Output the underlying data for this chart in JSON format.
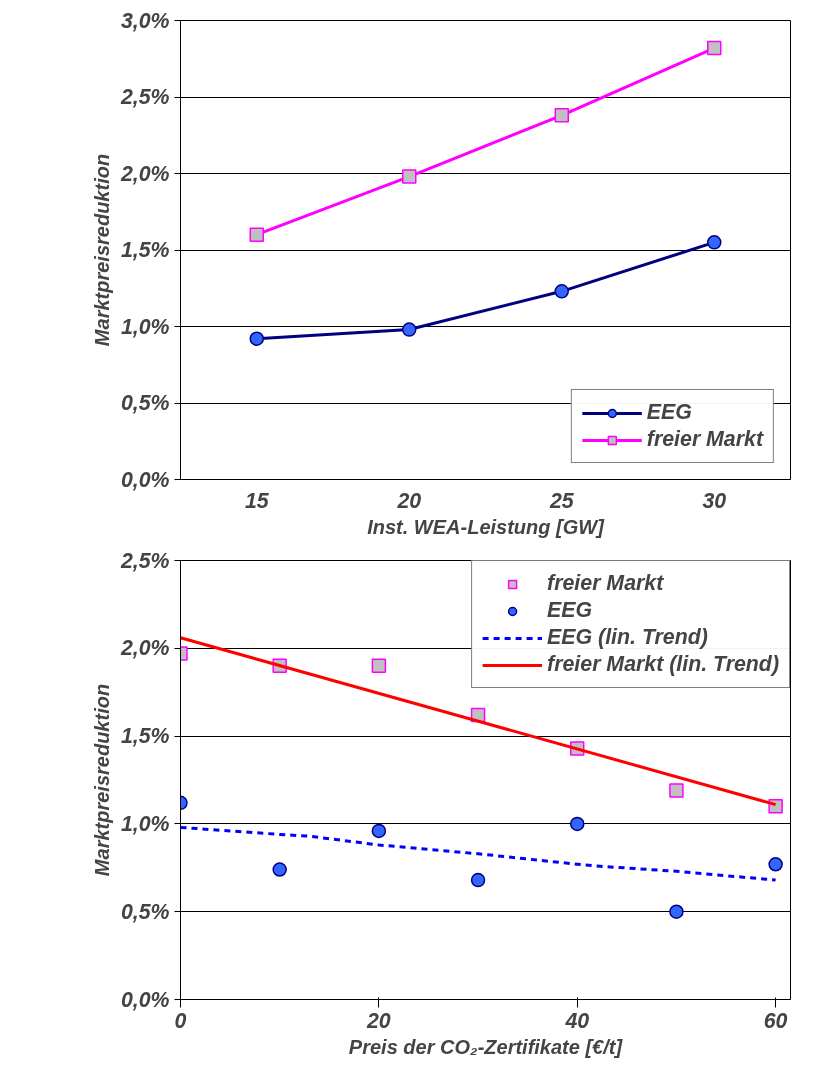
{
  "chart_data": [
    {
      "type": "line",
      "ylabel": "Marktpreisreduktion",
      "xlabel": "Inst. WEA-Leistung [GW]",
      "categories": [
        "15",
        "20",
        "25",
        "30"
      ],
      "series": [
        {
          "name": "EEG",
          "color": "#000080",
          "marker": "circle",
          "values": [
            0.92,
            0.98,
            1.23,
            1.55
          ]
        },
        {
          "name": "freier Markt",
          "color": "#ff00ff",
          "marker": "square",
          "values": [
            1.6,
            1.98,
            2.38,
            2.82
          ]
        }
      ],
      "ylim": [
        0,
        3.0
      ],
      "yticks": [
        {
          "value": 0,
          "label": "0,0%"
        },
        {
          "value": 0.5,
          "label": "0,5%"
        },
        {
          "value": 1.0,
          "label": "1,0%"
        },
        {
          "value": 1.5,
          "label": "1,5%"
        },
        {
          "value": 2.0,
          "label": "2,0%"
        },
        {
          "value": 2.5,
          "label": "2,5%"
        },
        {
          "value": 3.0,
          "label": "3,0%"
        }
      ],
      "grid": "y",
      "legend": "bottom right"
    },
    {
      "type": "scatter",
      "ylabel": "Marktpreisreduktion",
      "xlabel": "Preis der CO₂-Zertifikate [€/t]",
      "x": [
        0,
        10,
        20,
        30,
        40,
        50,
        60
      ],
      "series": [
        {
          "name": "freier Markt",
          "color": "#ff00ff",
          "marker": "square",
          "values": [
            1.97,
            1.9,
            1.9,
            1.62,
            1.43,
            1.19,
            1.1
          ]
        },
        {
          "name": "EEG",
          "color": "#3366ff",
          "marker": "circle",
          "values": [
            1.12,
            0.74,
            0.96,
            0.68,
            1.0,
            0.5,
            0.77
          ]
        },
        {
          "name": "EEG (lin. Trend)",
          "type": "line",
          "color": "#0000ff",
          "line_style": "dashed",
          "marker": "none",
          "x": [
            0,
            10,
            13,
            20,
            30,
            40,
            42,
            50,
            60
          ],
          "values": [
            0.98,
            0.94,
            0.93,
            0.88,
            0.83,
            0.77,
            0.76,
            0.73,
            0.68
          ]
        },
        {
          "name": "freier Markt (lin. Trend)",
          "type": "line",
          "color": "#ff0000",
          "line_style": "solid",
          "marker": "none",
          "x": [
            0,
            60
          ],
          "values": [
            2.06,
            1.11
          ]
        }
      ],
      "xlim": [
        0,
        61.5
      ],
      "xticks": [
        0,
        20,
        40,
        60
      ],
      "ylim": [
        0,
        2.5
      ],
      "yticks": [
        {
          "value": 0,
          "label": "0,0%"
        },
        {
          "value": 0.5,
          "label": "0,5%"
        },
        {
          "value": 1.0,
          "label": "1,0%"
        },
        {
          "value": 1.5,
          "label": "1,5%"
        },
        {
          "value": 2.0,
          "label": "2,0%"
        },
        {
          "value": 2.5,
          "label": "2,5%"
        }
      ],
      "grid": "y",
      "legend": "top right"
    }
  ]
}
